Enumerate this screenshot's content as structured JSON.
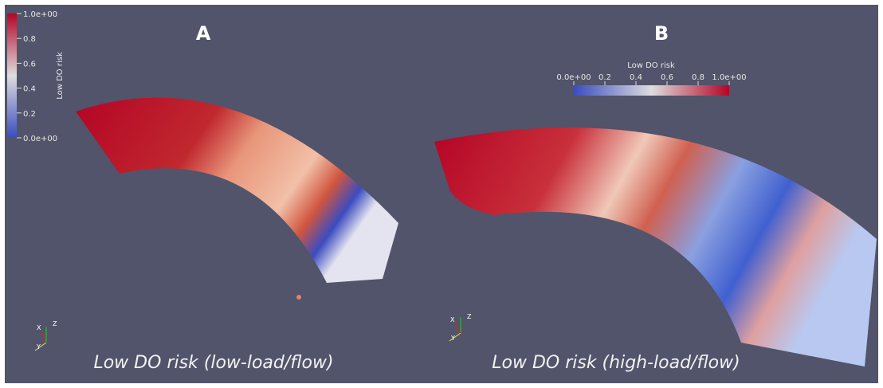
{
  "panel_a": {
    "label": "A",
    "caption": "Low DO risk (low-load/flow)",
    "colorbar": {
      "title": "Low DO risk",
      "range": [
        0,
        1
      ],
      "ticks": [
        {
          "value": 1,
          "label": "1.0e+00"
        },
        0.8,
        0.6,
        0.4,
        0.2,
        {
          "value": 0,
          "label": "0.0e+00"
        }
      ]
    },
    "axes": {
      "x": "X",
      "y": "Y",
      "z": "Z"
    }
  },
  "panel_b": {
    "label": "B",
    "caption": "Low DO risk (high-load/flow)",
    "colorbar": {
      "title": "Low DO risk",
      "range": [
        0,
        1
      ],
      "ticks": [
        {
          "value": 0,
          "label": "0.0e+00"
        },
        0.2,
        0.4,
        0.6,
        0.8,
        {
          "value": 1,
          "label": "1.0e+00"
        }
      ]
    },
    "axes": {
      "x": "X",
      "y": "Y",
      "z": "Z"
    }
  }
}
